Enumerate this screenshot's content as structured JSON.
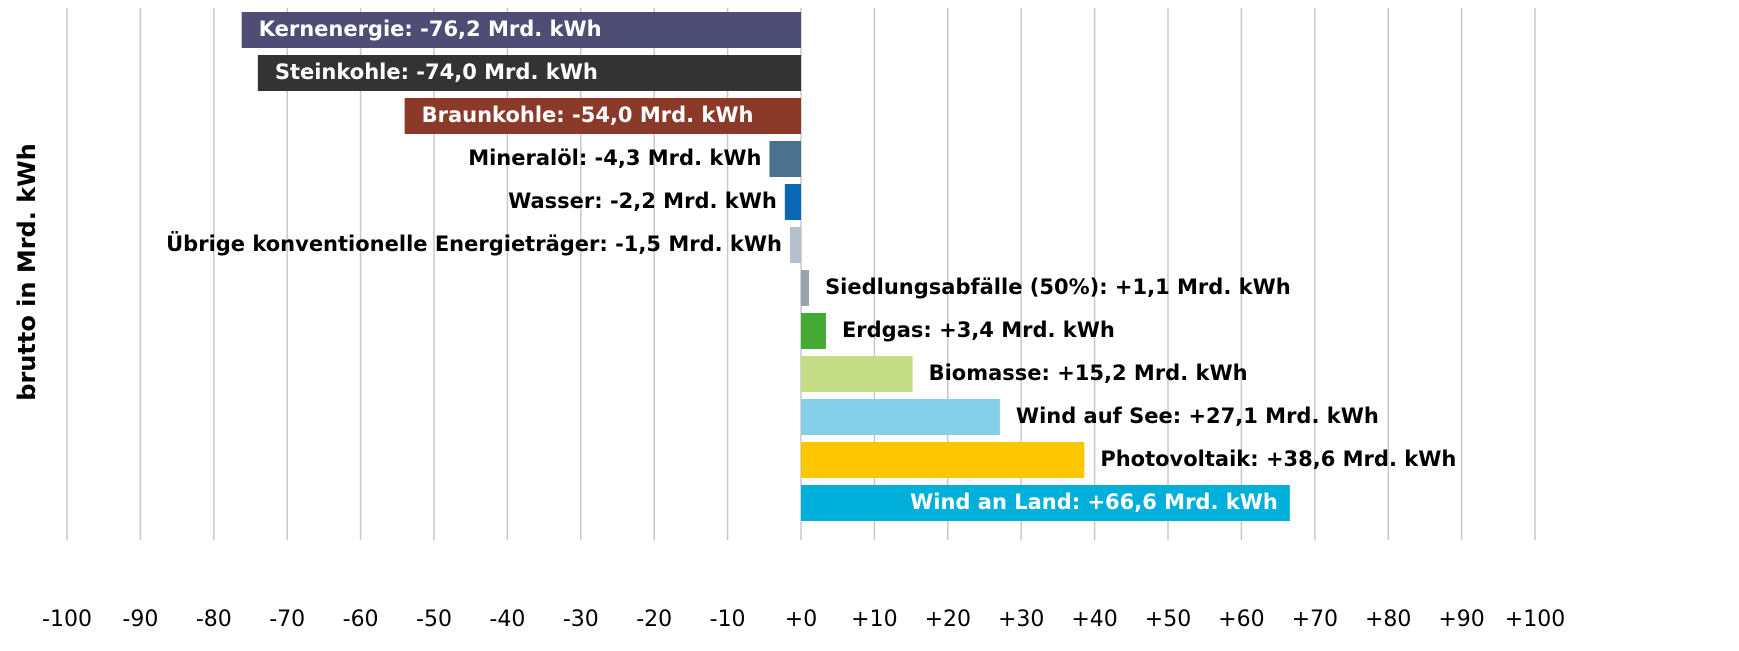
{
  "chart_data": {
    "type": "hbar",
    "y_label": "brutto in Mrd. kWh",
    "values": [
      -76.2,
      -74.0,
      -54.0,
      -4.3,
      -2.2,
      -1.5,
      1.1,
      3.4,
      15.2,
      27.1,
      38.6,
      66.6
    ],
    "value_labels": [
      "Kernenergie: -76,2 Mrd. kWh",
      "Steinkohle: -74,0 Mrd. kWh",
      "Braunkohle: -54,0 Mrd. kWh",
      "Mineralöl: -4,3 Mrd. kWh",
      "Wasser: -2,2 Mrd. kWh",
      "Übrige konventionelle Energieträger: -1,5 Mrd. kWh",
      "Siedlungsabfälle (50%): +1,1 Mrd. kWh",
      "Erdgas: +3,4 Mrd. kWh",
      "Biomasse: +15,2 Mrd. kWh",
      "Wind auf See: +27,1 Mrd. kWh",
      "Photovoltaik: +38,6 Mrd. kWh",
      "Wind an Land: +66,6 Mrd. kWh"
    ],
    "colors": [
      "#4d4d75",
      "#333333",
      "#8b3a2a",
      "#4a7290",
      "#0a68b5",
      "#b4c0cc",
      "#98a4b0",
      "#44aa33",
      "#c5dc86",
      "#86cfe8",
      "#fcc600",
      "#00b0da"
    ],
    "xlim": [
      -100,
      100
    ],
    "xticks": [
      -100,
      -90,
      -80,
      -70,
      -60,
      -50,
      -40,
      -30,
      -20,
      -10,
      {
        "value": 0,
        "label": "+0"
      },
      {
        "value": 10,
        "label": "+10"
      },
      {
        "value": 20,
        "label": "+20"
      },
      {
        "value": 30,
        "label": "+30"
      },
      {
        "value": 40,
        "label": "+40"
      },
      {
        "value": 50,
        "label": "+50"
      },
      {
        "value": 60,
        "label": "+60"
      },
      {
        "value": 70,
        "label": "+70"
      },
      {
        "value": 80,
        "label": "+80"
      },
      {
        "value": 90,
        "label": "+90"
      },
      {
        "value": 100,
        "label": "+100"
      }
    ],
    "grid": true
  }
}
